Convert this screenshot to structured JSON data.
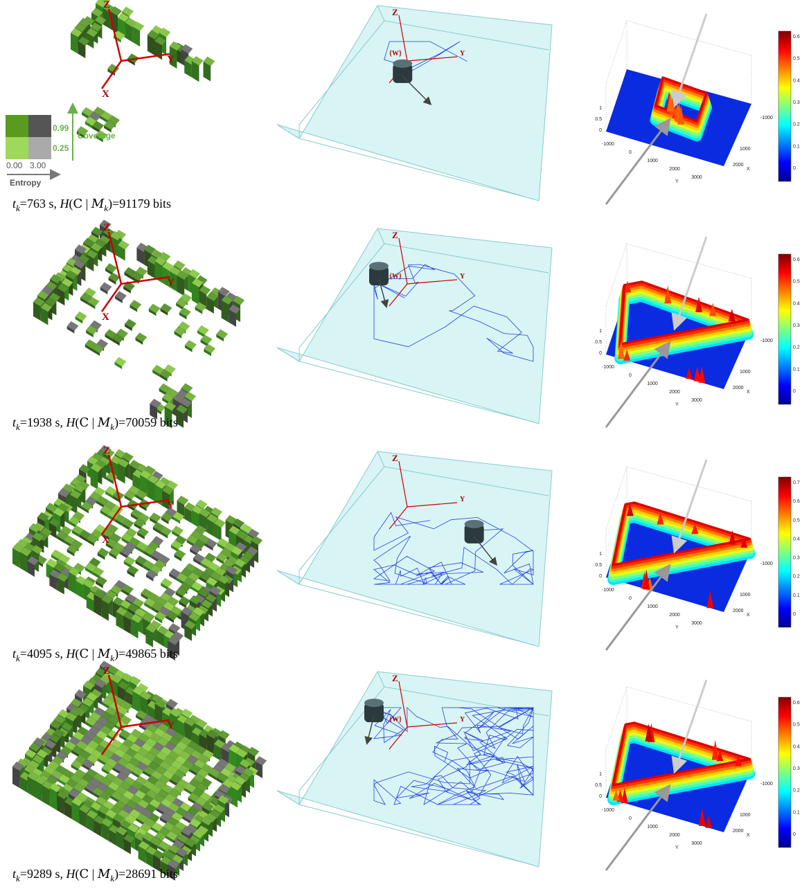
{
  "legend": {
    "coverage_ticks": [
      "0.99",
      "0.25"
    ],
    "coverage_label": "Coverage",
    "entropy_ticks": [
      "0.00",
      "3.00"
    ],
    "entropy_label": "Entropy"
  },
  "rows": [
    {
      "caption": [
        "t",
        "k",
        "=763 s, ",
        "H",
        "(",
        "C",
        " | ",
        "M",
        "k",
        ")=91179 bits"
      ],
      "map_axes": [
        "Z",
        "Y",
        "X"
      ],
      "world_axes": [
        "Z",
        "{W}",
        "Y"
      ],
      "plot": {
        "zticks": [
          "1",
          "0.5",
          "0"
        ],
        "yticks": [
          "-1000",
          "0",
          "1000",
          "2000",
          "3000"
        ],
        "xticks": [
          "-1000",
          "1000",
          "2000"
        ],
        "ylabel": "Y",
        "xlabel": "X",
        "colorbar": [
          "0.6",
          "0.5",
          "0.4",
          "0.3",
          "0.2",
          "0.1",
          "0"
        ]
      }
    },
    {
      "caption": [
        "t",
        "k",
        "=1938 s, ",
        "H",
        "(",
        "C",
        " | ",
        "M",
        "k",
        ")=70059 bits"
      ],
      "map_axes": [
        "Z",
        "Y",
        "X"
      ],
      "world_axes": [
        "Z",
        "{W}",
        "Y"
      ],
      "plot": {
        "zticks": [
          "1",
          "0.5",
          "0"
        ],
        "yticks": [
          "-1000",
          "0",
          "1000",
          "2000",
          "3000"
        ],
        "xticks": [
          "-1000",
          "1000",
          "2000"
        ],
        "ylabel": "Y",
        "xlabel": "X",
        "colorbar": [
          "0.6",
          "0.5",
          "0.4",
          "0.3",
          "0.2",
          "0.1",
          "0"
        ]
      }
    },
    {
      "caption": [
        "t",
        "k",
        "=4095 s, ",
        "H",
        "(",
        "C",
        " | ",
        "M",
        "k",
        ")=49865 bits"
      ],
      "map_axes": [
        "Z",
        "Y",
        "X"
      ],
      "world_axes": [
        "Z",
        "Y"
      ],
      "plot": {
        "zticks": [
          "1",
          "0.5",
          "0"
        ],
        "yticks": [
          "-1000",
          "0",
          "1000",
          "2000",
          "3000"
        ],
        "xticks": [
          "-1000",
          "1000",
          "2000"
        ],
        "ylabel": "Y",
        "xlabel": "X",
        "colorbar": [
          "0.7",
          "0.6",
          "0.5",
          "0.4",
          "0.3",
          "0.2",
          "0.1",
          "0"
        ]
      }
    },
    {
      "caption": [
        "t",
        "k",
        "=9289 s, ",
        "H",
        "(",
        "C",
        " | ",
        "M",
        "k",
        ")=28691 bits"
      ],
      "map_axes": [
        "Z",
        "Y"
      ],
      "world_axes": [
        "Z",
        "{W}",
        "Y"
      ],
      "plot": {
        "zticks": [
          "1",
          "0.5",
          "0"
        ],
        "yticks": [
          "-1000",
          "0",
          "1000",
          "2000",
          "3000"
        ],
        "xticks": [
          "-1000",
          "1000",
          "2000"
        ],
        "ylabel": "Y",
        "xlabel": "X",
        "colorbar": [
          "0.6",
          "0.5",
          "0.4",
          "0.3",
          "0.2",
          "0.1",
          "0"
        ]
      }
    }
  ]
}
